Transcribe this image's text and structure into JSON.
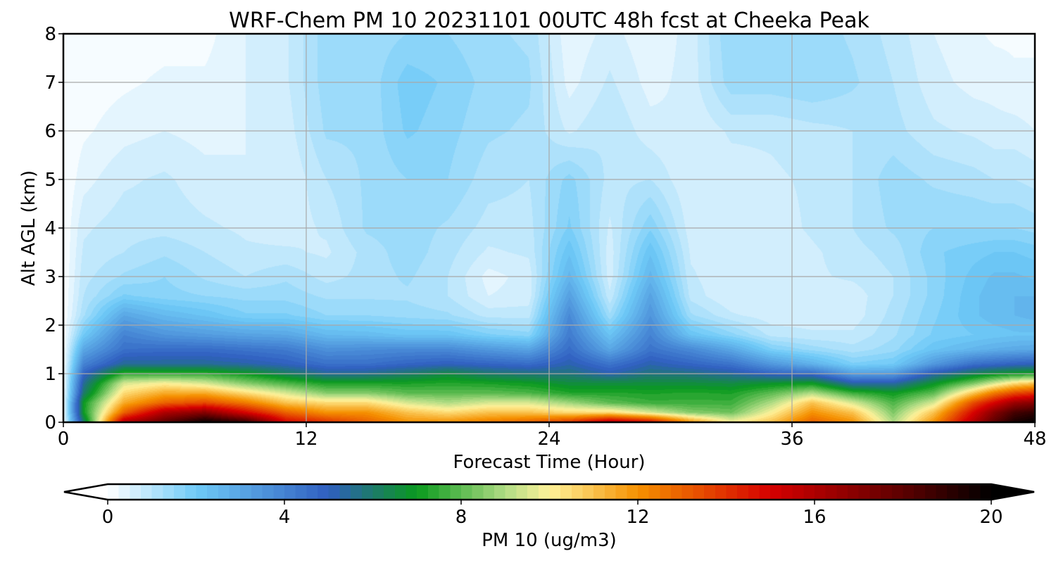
{
  "chart_data": {
    "type": "heatmap",
    "title": "WRF-Chem PM 10  20231101 00UTC 48h fcst at Cheeka Peak",
    "xlabel": "Forecast Time (Hour)",
    "ylabel": "Alt AGL (km)",
    "xlim": [
      0,
      48
    ],
    "ylim": [
      0,
      8
    ],
    "xticks": [
      0,
      12,
      24,
      36,
      48
    ],
    "yticks": [
      0,
      1,
      2,
      3,
      4,
      5,
      6,
      7,
      8
    ],
    "grid": true,
    "colorbar": {
      "label": "PM 10  (ug/m3)",
      "range": [
        0,
        20
      ],
      "ticks": [
        0,
        4,
        8,
        12,
        16,
        20
      ],
      "extend": "both",
      "placement": "bottom",
      "stops": [
        {
          "v": 0,
          "c": "#ffffff"
        },
        {
          "v": 2,
          "c": "#6fcaf7"
        },
        {
          "v": 5,
          "c": "#2f5fc0"
        },
        {
          "v": 6,
          "c": "#1d7a6a"
        },
        {
          "v": 7,
          "c": "#0a9a1e"
        },
        {
          "v": 9,
          "c": "#b0dc84"
        },
        {
          "v": 10,
          "c": "#fff29a"
        },
        {
          "v": 12,
          "c": "#f59100"
        },
        {
          "v": 15,
          "c": "#d60000"
        },
        {
          "v": 18,
          "c": "#5c0000"
        },
        {
          "v": 20,
          "c": "#000000"
        }
      ]
    },
    "field": {
      "x": [
        0,
        1,
        2,
        3,
        4,
        5,
        6,
        7,
        8,
        9,
        10,
        11,
        12,
        13,
        14,
        15,
        16,
        17,
        18,
        19,
        20,
        21,
        22,
        23,
        24,
        25,
        26,
        27,
        28,
        29,
        30,
        31,
        32,
        33,
        34,
        35,
        36,
        37,
        38,
        39,
        40,
        41,
        42,
        43,
        44,
        45,
        46,
        47,
        48
      ],
      "y": [
        0,
        0.2,
        0.4,
        0.6,
        0.8,
        1.0,
        1.2,
        1.5,
        1.8,
        2.2,
        2.6,
        3.0,
        3.5,
        4.0,
        5.0,
        6.0,
        7.0,
        8.0
      ],
      "profiles": [
        {
          "x": 0,
          "v": [
            0,
            0,
            0,
            0,
            0,
            0,
            0,
            0,
            0,
            0,
            0,
            0,
            0,
            0,
            0,
            0,
            0,
            0
          ]
        },
        {
          "x": 1,
          "v": [
            6,
            7,
            7,
            6,
            5.5,
            4.8,
            4,
            3,
            2,
            1.2,
            1,
            0.9,
            0.8,
            0.7,
            0.4,
            0.2,
            0.1,
            0.05
          ]
        },
        {
          "x": 3,
          "v": [
            16,
            13,
            11.5,
            10.5,
            9.5,
            7.5,
            5.5,
            4.5,
            4,
            3,
            1.8,
            1.3,
            1,
            0.9,
            0.7,
            0.4,
            0.2,
            0.1
          ]
        },
        {
          "x": 5,
          "v": [
            18,
            16,
            13,
            11.5,
            10,
            7.5,
            5.5,
            4.6,
            3.5,
            2.5,
            1.6,
            1.5,
            1.2,
            0.9,
            0.8,
            0.5,
            0.3,
            0.15
          ]
        },
        {
          "x": 7,
          "v": [
            20,
            17,
            13.5,
            11.5,
            9.5,
            7.5,
            5.5,
            4.6,
            3.3,
            2.2,
            1.5,
            1.2,
            1,
            0.8,
            0.6,
            0.4,
            0.3,
            0.15
          ]
        },
        {
          "x": 9,
          "v": [
            19,
            15,
            12.5,
            10.5,
            8.5,
            7,
            5.3,
            4.4,
            3.1,
            1.8,
            1.4,
            1,
            0.8,
            0.7,
            0.5,
            0.5,
            0.5,
            0.5
          ]
        },
        {
          "x": 11,
          "v": [
            15,
            13,
            11,
            9.5,
            7.8,
            6.2,
            5,
            4.2,
            3,
            1.8,
            1.4,
            1.2,
            0.8,
            0.6,
            0.5,
            0.6,
            0.7,
            0.7
          ]
        },
        {
          "x": 13,
          "v": [
            14,
            12,
            10.5,
            8.5,
            7.2,
            5.5,
            4.5,
            3.6,
            2.5,
            1.5,
            1.2,
            0.9,
            0.7,
            0.8,
            1,
            1.3,
            1.4,
            1.4
          ]
        },
        {
          "x": 15,
          "v": [
            13,
            12,
            10.5,
            8.5,
            7.2,
            5.6,
            4.5,
            3.7,
            2.4,
            1.5,
            1.2,
            1.1,
            1.1,
            1.3,
            1.3,
            1.3,
            1.3,
            1.3
          ]
        },
        {
          "x": 17,
          "v": [
            12,
            11,
            9.5,
            8,
            7.2,
            6,
            4.8,
            3.8,
            2.2,
            1.4,
            1.2,
            1.3,
            1.4,
            1.4,
            1.5,
            1.8,
            1.9,
            1.5
          ]
        },
        {
          "x": 19,
          "v": [
            12,
            10.5,
            9,
            8,
            7.3,
            6.5,
            5,
            3.8,
            2.2,
            1.3,
            1,
            1,
            1.1,
            1.2,
            1.5,
            1.6,
            1.7,
            1.5
          ]
        },
        {
          "x": 21,
          "v": [
            12.5,
            11,
            9.5,
            8,
            7.2,
            6,
            4.8,
            3.4,
            1.8,
            0.9,
            0.5,
            0.4,
            0.7,
            0.9,
            1.1,
            1.3,
            1.4,
            1.3
          ]
        },
        {
          "x": 23,
          "v": [
            13,
            11,
            9.5,
            7.8,
            7,
            5.8,
            4.6,
            3.1,
            1.6,
            0.9,
            0.6,
            0.6,
            0.8,
            0.9,
            1,
            1.2,
            1.3,
            1.2
          ]
        },
        {
          "x": 25,
          "v": [
            14,
            10.5,
            8.8,
            7.3,
            6.6,
            5.8,
            5.2,
            4.6,
            4.2,
            3.8,
            3.2,
            2.6,
            2.2,
            1.8,
            1.6,
            0.7,
            0.4,
            0.3
          ]
        },
        {
          "x": 27,
          "v": [
            16,
            10.5,
            8,
            7.3,
            6.6,
            5.2,
            4.4,
            3,
            2.2,
            1.3,
            0.8,
            0.6,
            0.6,
            0.7,
            0.9,
            1,
            0.8,
            0.6
          ]
        },
        {
          "x": 29,
          "v": [
            15,
            9.5,
            7.6,
            7.2,
            6.6,
            5.8,
            5.2,
            4.4,
            4,
            3.5,
            3.1,
            2.6,
            2.2,
            1.7,
            1,
            0.6,
            0.4,
            0.3
          ]
        },
        {
          "x": 31,
          "v": [
            12,
            8.5,
            7.6,
            7.3,
            6.6,
            5.7,
            4.8,
            3.8,
            2.2,
            1.3,
            0.9,
            0.8,
            0.7,
            0.6,
            0.5,
            0.5,
            0.6,
            0.6
          ]
        },
        {
          "x": 33,
          "v": [
            10,
            8.2,
            7.6,
            7.2,
            6.5,
            5.4,
            4.4,
            3,
            1.6,
            0.8,
            0.5,
            0.5,
            0.6,
            0.6,
            0.6,
            0.8,
            1.4,
            1.5
          ]
        },
        {
          "x": 35,
          "v": [
            11,
            10,
            9,
            8,
            6.8,
            4.8,
            3.4,
            1.8,
            0.9,
            0.6,
            0.5,
            0.5,
            0.5,
            0.6,
            0.7,
            0.8,
            1.4,
            1.5
          ]
        },
        {
          "x": 37,
          "v": [
            13,
            12,
            11,
            9,
            7,
            4.6,
            2.7,
            1.4,
            0.8,
            0.6,
            0.6,
            0.7,
            0.7,
            0.8,
            0.8,
            0.9,
            1.5,
            1.4
          ]
        },
        {
          "x": 39,
          "v": [
            12,
            11,
            9.5,
            7.6,
            5.3,
            3.2,
            1.8,
            1.1,
            0.8,
            0.6,
            0.6,
            0.8,
            0.9,
            1,
            1,
            1,
            1.3,
            1.2
          ]
        },
        {
          "x": 41,
          "v": [
            9,
            8.4,
            7.8,
            7,
            5.3,
            3.3,
            2,
            1.4,
            1.2,
            1.1,
            1,
            1,
            1.1,
            1.3,
            1.4,
            1.1,
            1,
            0.9
          ]
        },
        {
          "x": 43,
          "v": [
            12,
            11,
            9.5,
            8,
            6.8,
            5.2,
            3.4,
            2.2,
            1.8,
            1.7,
            1.6,
            1.6,
            1.7,
            1.5,
            1.2,
            0.8,
            0.6,
            0.5
          ]
        },
        {
          "x": 45,
          "v": [
            16,
            15,
            13.5,
            11,
            8.4,
            6.3,
            4.5,
            2.6,
            2,
            2.2,
            2.2,
            2.1,
            1.9,
            1.5,
            1.1,
            0.7,
            0.4,
            0.3
          ]
        },
        {
          "x": 46,
          "v": [
            18,
            17,
            15,
            12.5,
            9.5,
            6.7,
            4.7,
            2.8,
            2.1,
            2.4,
            2.4,
            2.3,
            2,
            1.5,
            1,
            0.6,
            0.4,
            0.2
          ]
        },
        {
          "x": 47,
          "v": [
            19.5,
            18.5,
            16.5,
            13.5,
            10.5,
            7,
            4.9,
            2.9,
            2.2,
            2.5,
            2.5,
            2.3,
            2,
            1.5,
            1,
            0.6,
            0.3,
            0.2
          ]
        },
        {
          "x": 48,
          "v": [
            20,
            19,
            17,
            14,
            11,
            7.2,
            5,
            3,
            2.2,
            2.6,
            2.5,
            2.2,
            1.9,
            1.4,
            0.9,
            0.5,
            0.3,
            0.2
          ]
        }
      ]
    }
  }
}
